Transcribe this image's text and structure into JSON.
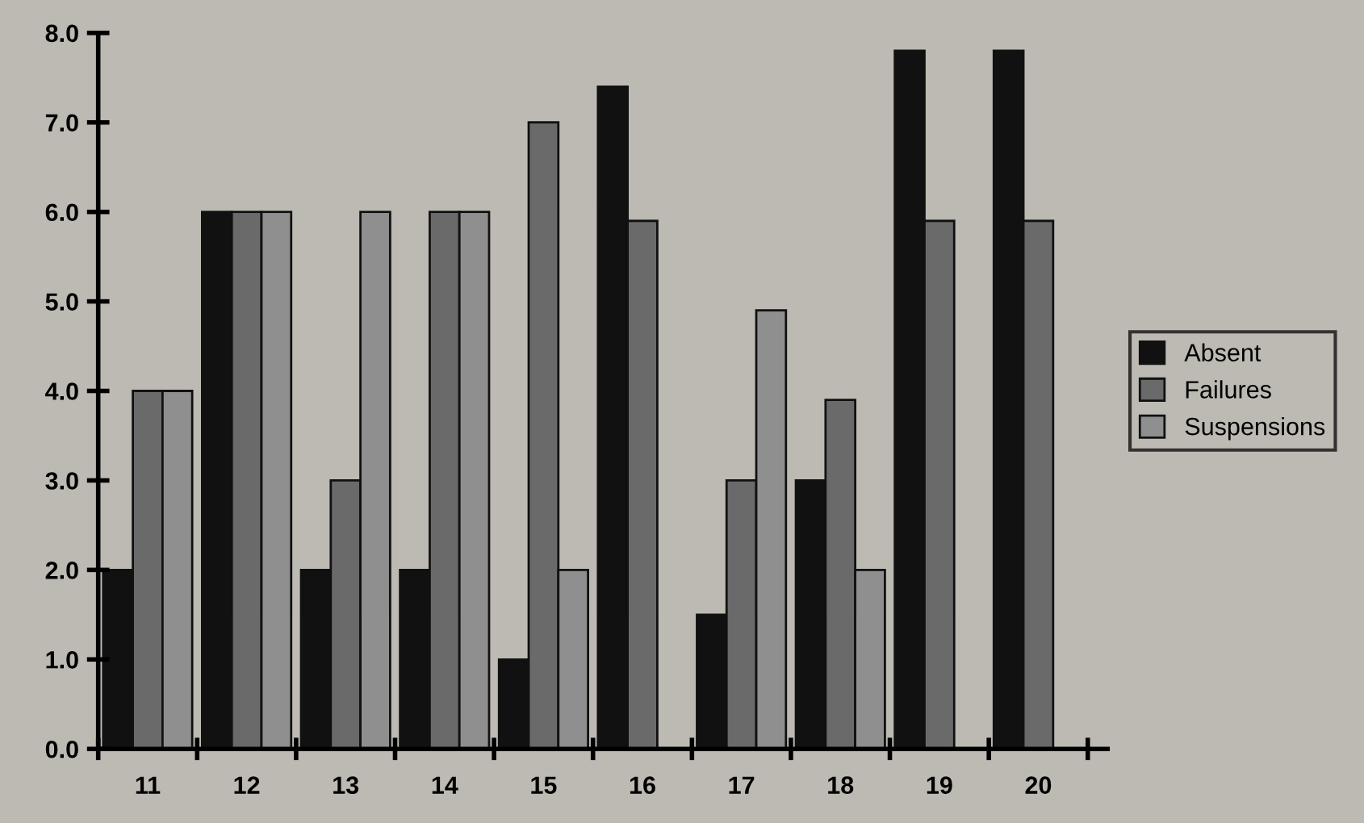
{
  "chart_data": {
    "type": "bar",
    "categories": [
      "11",
      "12",
      "13",
      "14",
      "15",
      "16",
      "17",
      "18",
      "19",
      "20"
    ],
    "series": [
      {
        "name": "Absent",
        "color": "#111111",
        "values": [
          2.0,
          6.0,
          2.0,
          2.0,
          1.0,
          7.4,
          1.5,
          3.0,
          7.8,
          7.8
        ]
      },
      {
        "name": "Failures",
        "color": "#6a6a6a",
        "values": [
          4.0,
          6.0,
          3.0,
          6.0,
          7.0,
          5.9,
          3.0,
          3.9,
          5.9,
          5.9
        ]
      },
      {
        "name": "Suspensions",
        "color": "#8f8f8f",
        "values": [
          4.0,
          6.0,
          6.0,
          6.0,
          2.0,
          null,
          4.9,
          2.0,
          null,
          null
        ]
      }
    ],
    "ylim": [
      0,
      8
    ],
    "yticks": [
      {
        "value": 0,
        "label": "0.0"
      },
      {
        "value": 1,
        "label": "1.0"
      },
      {
        "value": 2,
        "label": "2.0"
      },
      {
        "value": 3,
        "label": "3.0"
      },
      {
        "value": 4,
        "label": "4.0"
      },
      {
        "value": 5,
        "label": "5.0"
      },
      {
        "value": 6,
        "label": "6.0"
      },
      {
        "value": 7,
        "label": "7.0"
      },
      {
        "value": 8,
        "label": "8.0"
      }
    ],
    "grid": false,
    "legend": "right"
  }
}
